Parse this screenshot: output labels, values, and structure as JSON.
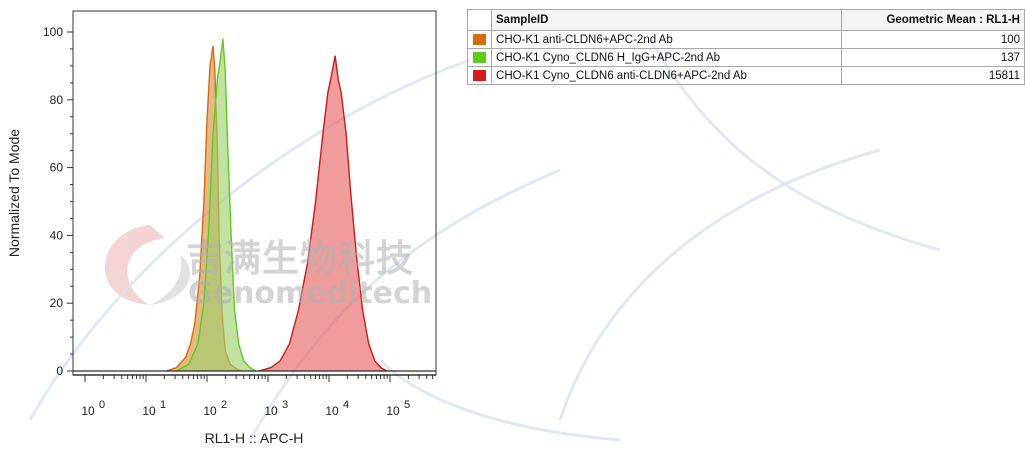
{
  "chart_data": {
    "type": "area",
    "xlabel": "RL1-H :: APC-H",
    "ylabel": "Normalized To Mode",
    "xscale": "log10",
    "xlim": [
      1,
      10000000
    ],
    "ylim": [
      0,
      100
    ],
    "y_ticks": [
      "0",
      "20",
      "40",
      "60",
      "80",
      "100"
    ],
    "x_ticks": [
      {
        "base": "10",
        "exp": "0"
      },
      {
        "base": "10",
        "exp": "1"
      },
      {
        "base": "10",
        "exp": "2"
      },
      {
        "base": "10",
        "exp": "3"
      },
      {
        "base": "10",
        "exp": "4"
      },
      {
        "base": "10",
        "exp": "5"
      }
    ],
    "series": [
      {
        "name": "CHO-K1 anti-CLDN6+APC-2nd Ab",
        "stroke": "#d86a10",
        "fill": "#d98a3a",
        "log10_x": [
          1.33,
          1.5,
          1.65,
          1.73,
          1.8,
          1.88,
          1.95,
          2.0,
          2.05,
          2.1,
          2.13,
          2.17,
          2.2,
          2.25,
          2.3,
          2.38,
          2.45,
          2.55
        ],
        "y": [
          0,
          1,
          4,
          8,
          14,
          28,
          50,
          74,
          90,
          96,
          88,
          66,
          38,
          16,
          6,
          2,
          1,
          0
        ]
      },
      {
        "name": "CHO-K1 Cyno_CLDN6 H_IgG+APC-2nd Ab",
        "stroke": "#5ccc1a",
        "fill": "#9cd06a",
        "log10_x": [
          1.5,
          1.7,
          1.85,
          1.95,
          2.03,
          2.1,
          2.17,
          2.22,
          2.26,
          2.3,
          2.34,
          2.4,
          2.45,
          2.52,
          2.6,
          2.7,
          2.8
        ],
        "y": [
          0,
          2,
          8,
          20,
          42,
          70,
          86,
          92,
          98,
          88,
          66,
          38,
          18,
          8,
          3,
          1,
          0
        ]
      },
      {
        "name": "CHO-K1 Cyno_CLDN6 anti-CLDN6+APC-2nd Ab",
        "stroke": "#cc1a1a",
        "fill": "#e86060",
        "log10_x": [
          2.85,
          3.05,
          3.2,
          3.35,
          3.5,
          3.65,
          3.78,
          3.9,
          3.98,
          4.05,
          4.1,
          4.15,
          4.2,
          4.28,
          4.35,
          4.45,
          4.55,
          4.65,
          4.75,
          4.85,
          4.95
        ],
        "y": [
          0,
          1,
          3,
          8,
          18,
          32,
          50,
          70,
          82,
          88,
          93,
          86,
          82,
          70,
          54,
          34,
          18,
          8,
          3,
          1,
          0
        ]
      }
    ]
  },
  "stats_table": {
    "headers": [
      "SampleID",
      "Geometric Mean : RL1-H"
    ],
    "rows": [
      {
        "color": "#d86a10",
        "sample": "CHO-K1 anti-CLDN6+APC-2nd Ab",
        "value": "100"
      },
      {
        "color": "#5ccc1a",
        "sample": "CHO-K1 Cyno_CLDN6 H_IgG+APC-2nd Ab",
        "value": "137"
      },
      {
        "color": "#d41c1c",
        "sample": "CHO-K1 Cyno_CLDN6 anti-CLDN6+APC-2nd Ab",
        "value": "15811"
      }
    ]
  },
  "watermark": {
    "cn_text": "吉满生物科技",
    "en_text": "Genomeditech"
  }
}
